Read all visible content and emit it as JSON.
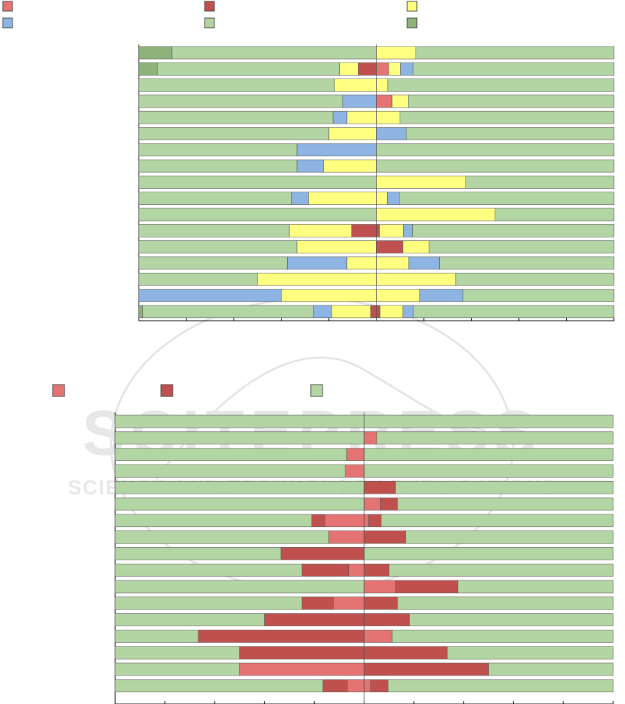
{
  "colors": {
    "light_red": "#e57373",
    "dark_red": "#c0504d",
    "yellow": "#ffff80",
    "blue": "#8db4e2",
    "light_green": "#b3d5a3",
    "dark_green": "#8db37a",
    "watermark": "#cfcfcf"
  },
  "watermark": {
    "line1": "SCITEPRESS",
    "line2": "SCIENCE AND TECHNOLOGY PUBLICATIONS"
  },
  "chart_data": [
    {
      "type": "bar",
      "orientation": "horizontal",
      "stacked": true,
      "legend_placement": "top",
      "legend": [
        {
          "key": "c1",
          "color": "#e57373"
        },
        {
          "key": "c2",
          "color": "#c0504d"
        },
        {
          "key": "c3",
          "color": "#ffff80"
        },
        {
          "key": "c4",
          "color": "#8db4e2"
        },
        {
          "key": "c5",
          "color": "#b3d5a3"
        },
        {
          "key": "c6",
          "color": "#8db37a"
        }
      ],
      "xlim": [
        0,
        100
      ],
      "xticks": 10,
      "split_at": 50,
      "rows": [
        [
          [
            0,
            7,
            "c6"
          ],
          [
            7,
            50,
            "c5"
          ],
          [
            50,
            58.3,
            "c3"
          ],
          [
            58.3,
            100,
            "c5"
          ]
        ],
        [
          [
            0,
            4,
            "c6"
          ],
          [
            4,
            42.3,
            "c5"
          ],
          [
            42.3,
            46.2,
            "c3"
          ],
          [
            46.2,
            50,
            "c2"
          ],
          [
            50,
            52.6,
            "c1"
          ],
          [
            52.6,
            55.1,
            "c3"
          ],
          [
            55.1,
            57.7,
            "c4"
          ],
          [
            57.7,
            100,
            "c5"
          ]
        ],
        [
          [
            0,
            41.2,
            "c5"
          ],
          [
            41.2,
            50,
            "c3"
          ],
          [
            50,
            52.4,
            "c3"
          ],
          [
            52.4,
            100,
            "c5"
          ]
        ],
        [
          [
            0,
            42.9,
            "c5"
          ],
          [
            42.9,
            50,
            "c4"
          ],
          [
            50,
            53.3,
            "c1"
          ],
          [
            53.3,
            56.7,
            "c3"
          ],
          [
            56.7,
            100,
            "c5"
          ]
        ],
        [
          [
            0,
            40.9,
            "c5"
          ],
          [
            40.9,
            43.8,
            "c4"
          ],
          [
            43.8,
            50,
            "c3"
          ],
          [
            50,
            55,
            "c3"
          ],
          [
            55,
            100,
            "c5"
          ]
        ],
        [
          [
            0,
            40,
            "c5"
          ],
          [
            40,
            50,
            "c3"
          ],
          [
            50,
            56.3,
            "c4"
          ],
          [
            56.3,
            100,
            "c5"
          ]
        ],
        [
          [
            0,
            33.3,
            "c5"
          ],
          [
            33.3,
            50,
            "c4"
          ],
          [
            50,
            100,
            "c5"
          ]
        ],
        [
          [
            0,
            33.3,
            "c5"
          ],
          [
            33.3,
            38.9,
            "c4"
          ],
          [
            38.9,
            50,
            "c3"
          ],
          [
            50,
            100,
            "c5"
          ]
        ],
        [
          [
            0,
            50,
            "c5"
          ],
          [
            50,
            68.8,
            "c3"
          ],
          [
            68.8,
            100,
            "c5"
          ]
        ],
        [
          [
            0,
            32.2,
            "c5"
          ],
          [
            32.2,
            35.7,
            "c4"
          ],
          [
            35.7,
            50,
            "c3"
          ],
          [
            50,
            52.3,
            "c3"
          ],
          [
            52.3,
            54.8,
            "c4"
          ],
          [
            54.8,
            100,
            "c5"
          ]
        ],
        [
          [
            0,
            50,
            "c5"
          ],
          [
            50,
            75,
            "c3"
          ],
          [
            75,
            100,
            "c5"
          ]
        ],
        [
          [
            0,
            31.7,
            "c5"
          ],
          [
            31.7,
            44.8,
            "c3"
          ],
          [
            44.8,
            50,
            "c2"
          ],
          [
            50,
            50.7,
            "c2"
          ],
          [
            50.7,
            55.7,
            "c3"
          ],
          [
            55.7,
            57.6,
            "c4"
          ],
          [
            57.6,
            100,
            "c5"
          ]
        ],
        [
          [
            0,
            33.3,
            "c5"
          ],
          [
            33.3,
            50,
            "c3"
          ],
          [
            50,
            55.6,
            "c2"
          ],
          [
            55.6,
            61.1,
            "c3"
          ],
          [
            61.1,
            100,
            "c5"
          ]
        ],
        [
          [
            0,
            31.3,
            "c5"
          ],
          [
            31.3,
            43.8,
            "c4"
          ],
          [
            43.8,
            50,
            "c3"
          ],
          [
            50,
            56.8,
            "c3"
          ],
          [
            56.8,
            63.3,
            "c4"
          ],
          [
            63.3,
            100,
            "c5"
          ]
        ],
        [
          [
            0,
            25,
            "c5"
          ],
          [
            25,
            50,
            "c3"
          ],
          [
            50,
            66.7,
            "c3"
          ],
          [
            66.7,
            100,
            "c5"
          ]
        ],
        [
          [
            0,
            30,
            "c4"
          ],
          [
            30,
            50,
            "c3"
          ],
          [
            50,
            59.1,
            "c3"
          ],
          [
            59.1,
            68.2,
            "c4"
          ],
          [
            68.2,
            100,
            "c5"
          ]
        ],
        [
          [
            0,
            0.8,
            "c6"
          ],
          [
            0.8,
            36.7,
            "c5"
          ],
          [
            36.7,
            40.6,
            "c4"
          ],
          [
            40.6,
            48.8,
            "c3"
          ],
          [
            48.8,
            50,
            "c2"
          ],
          [
            50,
            50.8,
            "c2"
          ],
          [
            50.8,
            55.6,
            "c3"
          ],
          [
            55.6,
            57.8,
            "c4"
          ],
          [
            57.8,
            100,
            "c5"
          ]
        ]
      ]
    },
    {
      "type": "bar",
      "orientation": "horizontal",
      "stacked": true,
      "legend_placement": "top",
      "legend": [
        {
          "key": "c1",
          "color": "#e57373"
        },
        {
          "key": "c2",
          "color": "#c0504d"
        },
        {
          "key": "c5",
          "color": "#b3d5a3"
        }
      ],
      "xlim": [
        0,
        100
      ],
      "xticks": 10,
      "split_at": 50,
      "rows": [
        [
          [
            0,
            100,
            "c5"
          ]
        ],
        [
          [
            0,
            50,
            "c5"
          ],
          [
            50,
            52.5,
            "c1"
          ],
          [
            52.5,
            100,
            "c5"
          ]
        ],
        [
          [
            0,
            46.5,
            "c5"
          ],
          [
            46.5,
            50,
            "c1"
          ],
          [
            50,
            100,
            "c5"
          ]
        ],
        [
          [
            0,
            46.2,
            "c5"
          ],
          [
            46.2,
            50,
            "c1"
          ],
          [
            50,
            100,
            "c5"
          ]
        ],
        [
          [
            0,
            50,
            "c5"
          ],
          [
            50,
            56.3,
            "c2"
          ],
          [
            56.3,
            100,
            "c5"
          ]
        ],
        [
          [
            0,
            50,
            "c5"
          ],
          [
            50,
            53.3,
            "c1"
          ],
          [
            53.3,
            56.7,
            "c2"
          ],
          [
            56.7,
            100,
            "c5"
          ]
        ],
        [
          [
            0,
            39.5,
            "c5"
          ],
          [
            39.5,
            42.1,
            "c2"
          ],
          [
            42.1,
            50,
            "c1"
          ],
          [
            50,
            50.9,
            "c1"
          ],
          [
            50.9,
            53.4,
            "c2"
          ],
          [
            53.4,
            100,
            "c5"
          ]
        ],
        [
          [
            0,
            42.9,
            "c5"
          ],
          [
            42.9,
            50,
            "c1"
          ],
          [
            50,
            58.3,
            "c2"
          ],
          [
            58.3,
            100,
            "c5"
          ]
        ],
        [
          [
            0,
            33.3,
            "c5"
          ],
          [
            33.3,
            50,
            "c2"
          ],
          [
            50,
            100,
            "c5"
          ]
        ],
        [
          [
            0,
            37.5,
            "c5"
          ],
          [
            37.5,
            46.9,
            "c2"
          ],
          [
            46.9,
            50,
            "c1"
          ],
          [
            50,
            55,
            "c2"
          ],
          [
            55,
            100,
            "c5"
          ]
        ],
        [
          [
            0,
            50,
            "c5"
          ],
          [
            50,
            56.3,
            "c1"
          ],
          [
            56.3,
            68.8,
            "c2"
          ],
          [
            68.8,
            100,
            "c5"
          ]
        ],
        [
          [
            0,
            37.5,
            "c5"
          ],
          [
            37.5,
            43.8,
            "c2"
          ],
          [
            43.8,
            50,
            "c1"
          ],
          [
            50,
            56.7,
            "c2"
          ],
          [
            56.7,
            100,
            "c5"
          ]
        ],
        [
          [
            0,
            30,
            "c5"
          ],
          [
            30,
            50,
            "c2"
          ],
          [
            50,
            59.1,
            "c2"
          ],
          [
            59.1,
            100,
            "c5"
          ]
        ],
        [
          [
            0,
            16.7,
            "c5"
          ],
          [
            16.7,
            50,
            "c2"
          ],
          [
            50,
            55.6,
            "c1"
          ],
          [
            55.6,
            100,
            "c5"
          ]
        ],
        [
          [
            0,
            25,
            "c5"
          ],
          [
            25,
            50,
            "c2"
          ],
          [
            50,
            66.7,
            "c2"
          ],
          [
            66.7,
            100,
            "c5"
          ]
        ],
        [
          [
            0,
            25,
            "c5"
          ],
          [
            25,
            50,
            "c1"
          ],
          [
            50,
            75,
            "c2"
          ],
          [
            75,
            100,
            "c5"
          ]
        ],
        [
          [
            0,
            41.7,
            "c5"
          ],
          [
            41.7,
            46.6,
            "c2"
          ],
          [
            46.6,
            50,
            "c1"
          ],
          [
            50,
            51.3,
            "c1"
          ],
          [
            51.3,
            54.8,
            "c2"
          ],
          [
            54.8,
            100,
            "c5"
          ]
        ]
      ]
    }
  ]
}
